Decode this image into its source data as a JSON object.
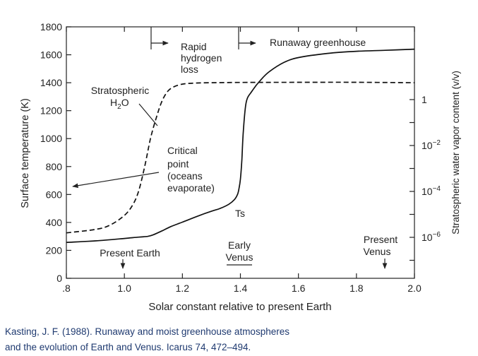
{
  "chart_data": {
    "type": "line",
    "xlabel": "Solar constant relative to present Earth",
    "ylabel": "Surface temperature (K)",
    "y2label": "Stratospheric water vapor content (v/v)",
    "xlim": [
      0.8,
      2.0
    ],
    "ylim": [
      0,
      1800
    ],
    "y2_scale": "log",
    "x_ticks": [
      ".8",
      "1.0",
      "1.2",
      "1.4",
      "1.6",
      "1.8",
      "2.0"
    ],
    "y_ticks": [
      "0",
      "200",
      "400",
      "600",
      "800",
      "1000",
      "1200",
      "1400",
      "1600",
      "1800"
    ],
    "y2_ticks": [
      {
        "base": "1",
        "exp": "",
        "value": 1
      },
      {
        "base": "10",
        "exp": "−2",
        "value": 0.01
      },
      {
        "base": "10",
        "exp": "−4",
        "value": 0.0001
      },
      {
        "base": "10",
        "exp": "−6",
        "value": 1e-06
      }
    ],
    "series": [
      {
        "name": "Ts",
        "style": "solid",
        "x": [
          0.8,
          0.9,
          1.0,
          1.05,
          1.08,
          1.1,
          1.13,
          1.16,
          1.2,
          1.25,
          1.3,
          1.33,
          1.36,
          1.38,
          1.39,
          1.395,
          1.4,
          1.405,
          1.41,
          1.42,
          1.44,
          1.47,
          1.5,
          1.55,
          1.6,
          1.7,
          1.8,
          1.9,
          2.0
        ],
        "y": [
          257,
          268,
          285,
          295,
          300,
          312,
          340,
          370,
          402,
          443,
          480,
          500,
          530,
          565,
          600,
          640,
          710,
          850,
          1050,
          1260,
          1340,
          1420,
          1480,
          1545,
          1580,
          1610,
          1625,
          1632,
          1640
        ]
      },
      {
        "name": "Stratospheric H2O",
        "style": "dashed",
        "x": [
          0.8,
          0.9,
          0.95,
          1.0,
          1.03,
          1.05,
          1.07,
          1.09,
          1.11,
          1.13,
          1.15,
          1.17,
          1.19,
          1.21,
          1.25,
          1.3,
          1.4,
          1.6,
          1.8,
          2.0
        ],
        "y": [
          325,
          350,
          380,
          450,
          530,
          630,
          800,
          1000,
          1150,
          1270,
          1340,
          1370,
          1385,
          1393,
          1398,
          1400,
          1402,
          1403,
          1403,
          1400
        ]
      }
    ],
    "annotations": {
      "rapid": [
        "Rapid",
        "hydrogen",
        "loss"
      ],
      "runaway": "Runaway greenhouse",
      "strat": [
        "Stratospheric"
      ],
      "h2o": {
        "pre": "H",
        "sub": "2",
        "post": "O"
      },
      "critical": [
        "Critical",
        "point",
        "(oceans",
        "evaporate)"
      ],
      "ts": "Ts",
      "present_earth": "Present Earth",
      "early_venus": [
        "Early",
        "Venus"
      ],
      "present_venus": [
        "Present",
        "Venus"
      ]
    }
  },
  "caption": {
    "line1": "Kasting, J. F. (1988). Runaway and moist greenhouse atmospheres",
    "line2": "and the evolution of Earth and Venus. Icarus 74, 472–494."
  }
}
